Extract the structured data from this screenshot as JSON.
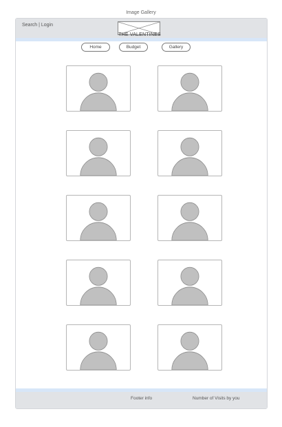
{
  "page": {
    "caption": "Image Gallery"
  },
  "header": {
    "search_login": "Search | Login",
    "logo_icon": "image-placeholder-icon",
    "site_title": "THE VALENTINES"
  },
  "nav": {
    "home": "Home",
    "budget": "Budget",
    "gallery": "Gallery"
  },
  "gallery": {
    "items": [
      {
        "icon": "person-placeholder-icon"
      },
      {
        "icon": "person-placeholder-icon"
      },
      {
        "icon": "person-placeholder-icon"
      },
      {
        "icon": "person-placeholder-icon"
      },
      {
        "icon": "person-placeholder-icon"
      },
      {
        "icon": "person-placeholder-icon"
      },
      {
        "icon": "person-placeholder-icon"
      },
      {
        "icon": "person-placeholder-icon"
      },
      {
        "icon": "person-placeholder-icon"
      },
      {
        "icon": "person-placeholder-icon"
      }
    ]
  },
  "footer": {
    "info": "Footer info",
    "visits": "Number of Visits by you"
  },
  "colors": {
    "header_bg": "#e1e3e6",
    "accent_strip": "#d7e6f8",
    "placeholder_fill": "#c0c0c0"
  }
}
